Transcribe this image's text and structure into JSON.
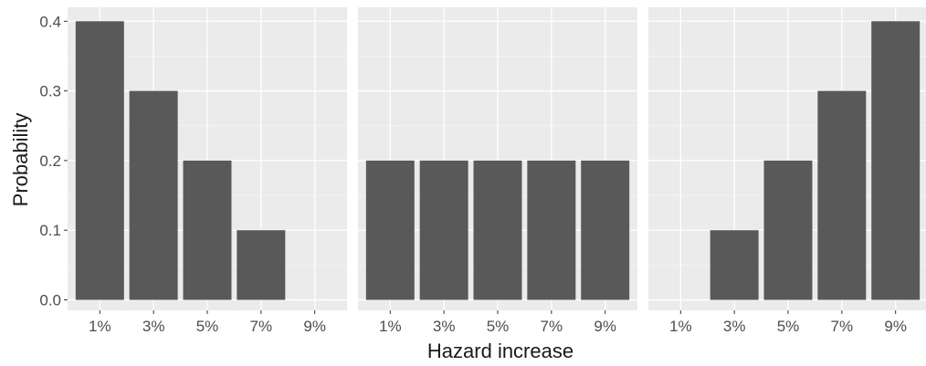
{
  "chart_data": {
    "type": "bar",
    "xlabel": "Hazard increase",
    "ylabel": "Probability",
    "ylim": [
      -0.015,
      0.42
    ],
    "yticks": [
      0.0,
      0.1,
      0.2,
      0.3,
      0.4
    ],
    "ytick_labels": [
      "0.0",
      "0.1",
      "0.2",
      "0.3",
      "0.4"
    ],
    "grid": true,
    "colors": {
      "panel_bg": "#ebebeb",
      "grid_major": "#ffffff",
      "bar": "#595959",
      "tick_text": "#4d4d4d"
    },
    "panels": [
      {
        "categories": [
          "1%",
          "3%",
          "5%",
          "7%",
          "9%"
        ],
        "values": [
          0.4,
          0.3,
          0.2,
          0.1,
          0.0
        ]
      },
      {
        "categories": [
          "1%",
          "3%",
          "5%",
          "7%",
          "9%"
        ],
        "values": [
          0.2,
          0.2,
          0.2,
          0.2,
          0.2
        ]
      },
      {
        "categories": [
          "1%",
          "3%",
          "5%",
          "7%",
          "9%"
        ],
        "values": [
          0.0,
          0.1,
          0.2,
          0.3,
          0.4
        ]
      }
    ]
  }
}
